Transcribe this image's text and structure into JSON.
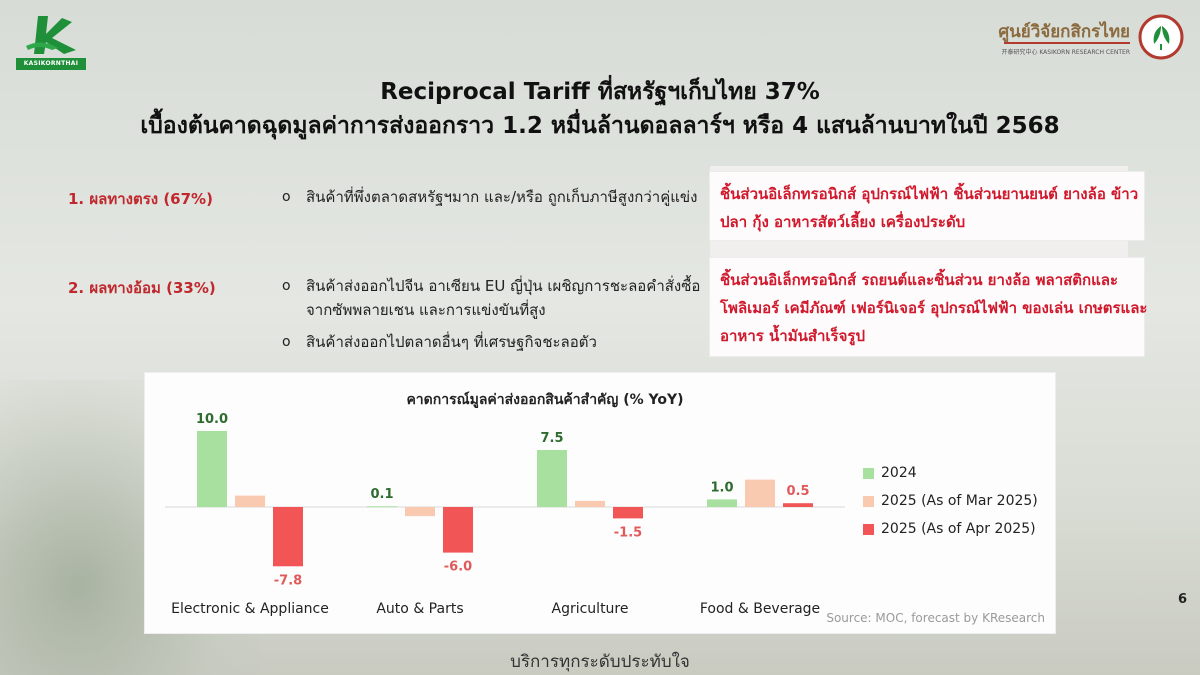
{
  "brand": {
    "left_logo_text": "KASIKORNTHAI",
    "right_logo_thai": "ศูนย์วิจัยกสิกรไทย",
    "right_logo_en": "开泰研究中心  KASIKORN RESEARCH CENTER",
    "green": "#1f8f3a",
    "accent_red": "#c0282d"
  },
  "title": {
    "line1": "Reciprocal Tariff ที่สหรัฐฯเก็บไทย 37%",
    "line2": "เบื้องต้นคาดฉุดมูลค่าการส่งออกราว 1.2 หมื่นล้านดอลลาร์ฯ หรือ 4 แสนล้านบาทในปี 2568"
  },
  "impacts": [
    {
      "label": "1. ผลทางตรง (67%)",
      "bullets": [
        "สินค้าที่พึ่งตลาดสหรัฐฯมาก และ/หรือ ถูกเก็บภาษีสูงกว่าคู่แข่ง"
      ],
      "products": "ชิ้นส่วนอิเล็กทรอนิกส์ อุปกรณ์ไฟฟ้า ชิ้นส่วนยานยนต์ ยางล้อ ข้าว ปลา กุ้ง อาหารสัตว์เลี้ยง เครื่องประดับ"
    },
    {
      "label": "2. ผลทางอ้อม (33%)",
      "bullets": [
        "สินค้าส่งออกไปจีน อาเซียน EU ญี่ปุ่น เผชิญการชะลอคำสั่งซื้อจากซัพพลายเชน และการแข่งขันที่สูง",
        "สินค้าส่งออกไปตลาดอื่นๆ ที่เศรษฐกิจชะลอตัว"
      ],
      "products": "ชิ้นส่วนอิเล็กทรอนิกส์ รถยนต์และชิ้นส่วน ยางล้อ พลาสติกและโพลิเมอร์ เคมีภัณฑ์ เฟอร์นิเจอร์ อุปกรณ์ไฟฟ้า ของเล่น เกษตรและอาหาร น้ำมันสำเร็จรูป"
    }
  ],
  "bullet_symbol": "o",
  "chart_data": {
    "type": "bar",
    "title": "คาดการณ์มูลค่าส่งออกสินค้าสำคัญ (% YoY)",
    "categories": [
      "Electronic & Appliance",
      "Auto & Parts",
      "Agriculture",
      "Food & Beverage"
    ],
    "series": [
      {
        "name": "2024",
        "values": [
          10.0,
          0.1,
          7.5,
          1.0
        ],
        "color": "#a8e0a0",
        "label_color": "#2e6b2e",
        "show_labels": true
      },
      {
        "name": "2025 (As of Mar 2025)",
        "values": [
          1.5,
          -1.2,
          0.8,
          3.6
        ],
        "color": "#f9c9b0",
        "label_color": "#d64545",
        "show_labels": false
      },
      {
        "name": "2025 (As of Apr 2025)",
        "values": [
          -7.8,
          -6.0,
          -1.5,
          0.5
        ],
        "color": "#f25555",
        "label_color": "#e05a5a",
        "show_labels": true
      }
    ],
    "ylim": [
      -8.5,
      10.5
    ],
    "grid": false,
    "legend": "right",
    "source": "Source: MOC, forecast by KResearch"
  },
  "page_number": "6",
  "footer": "บริการทุกระดับประทับใจ"
}
